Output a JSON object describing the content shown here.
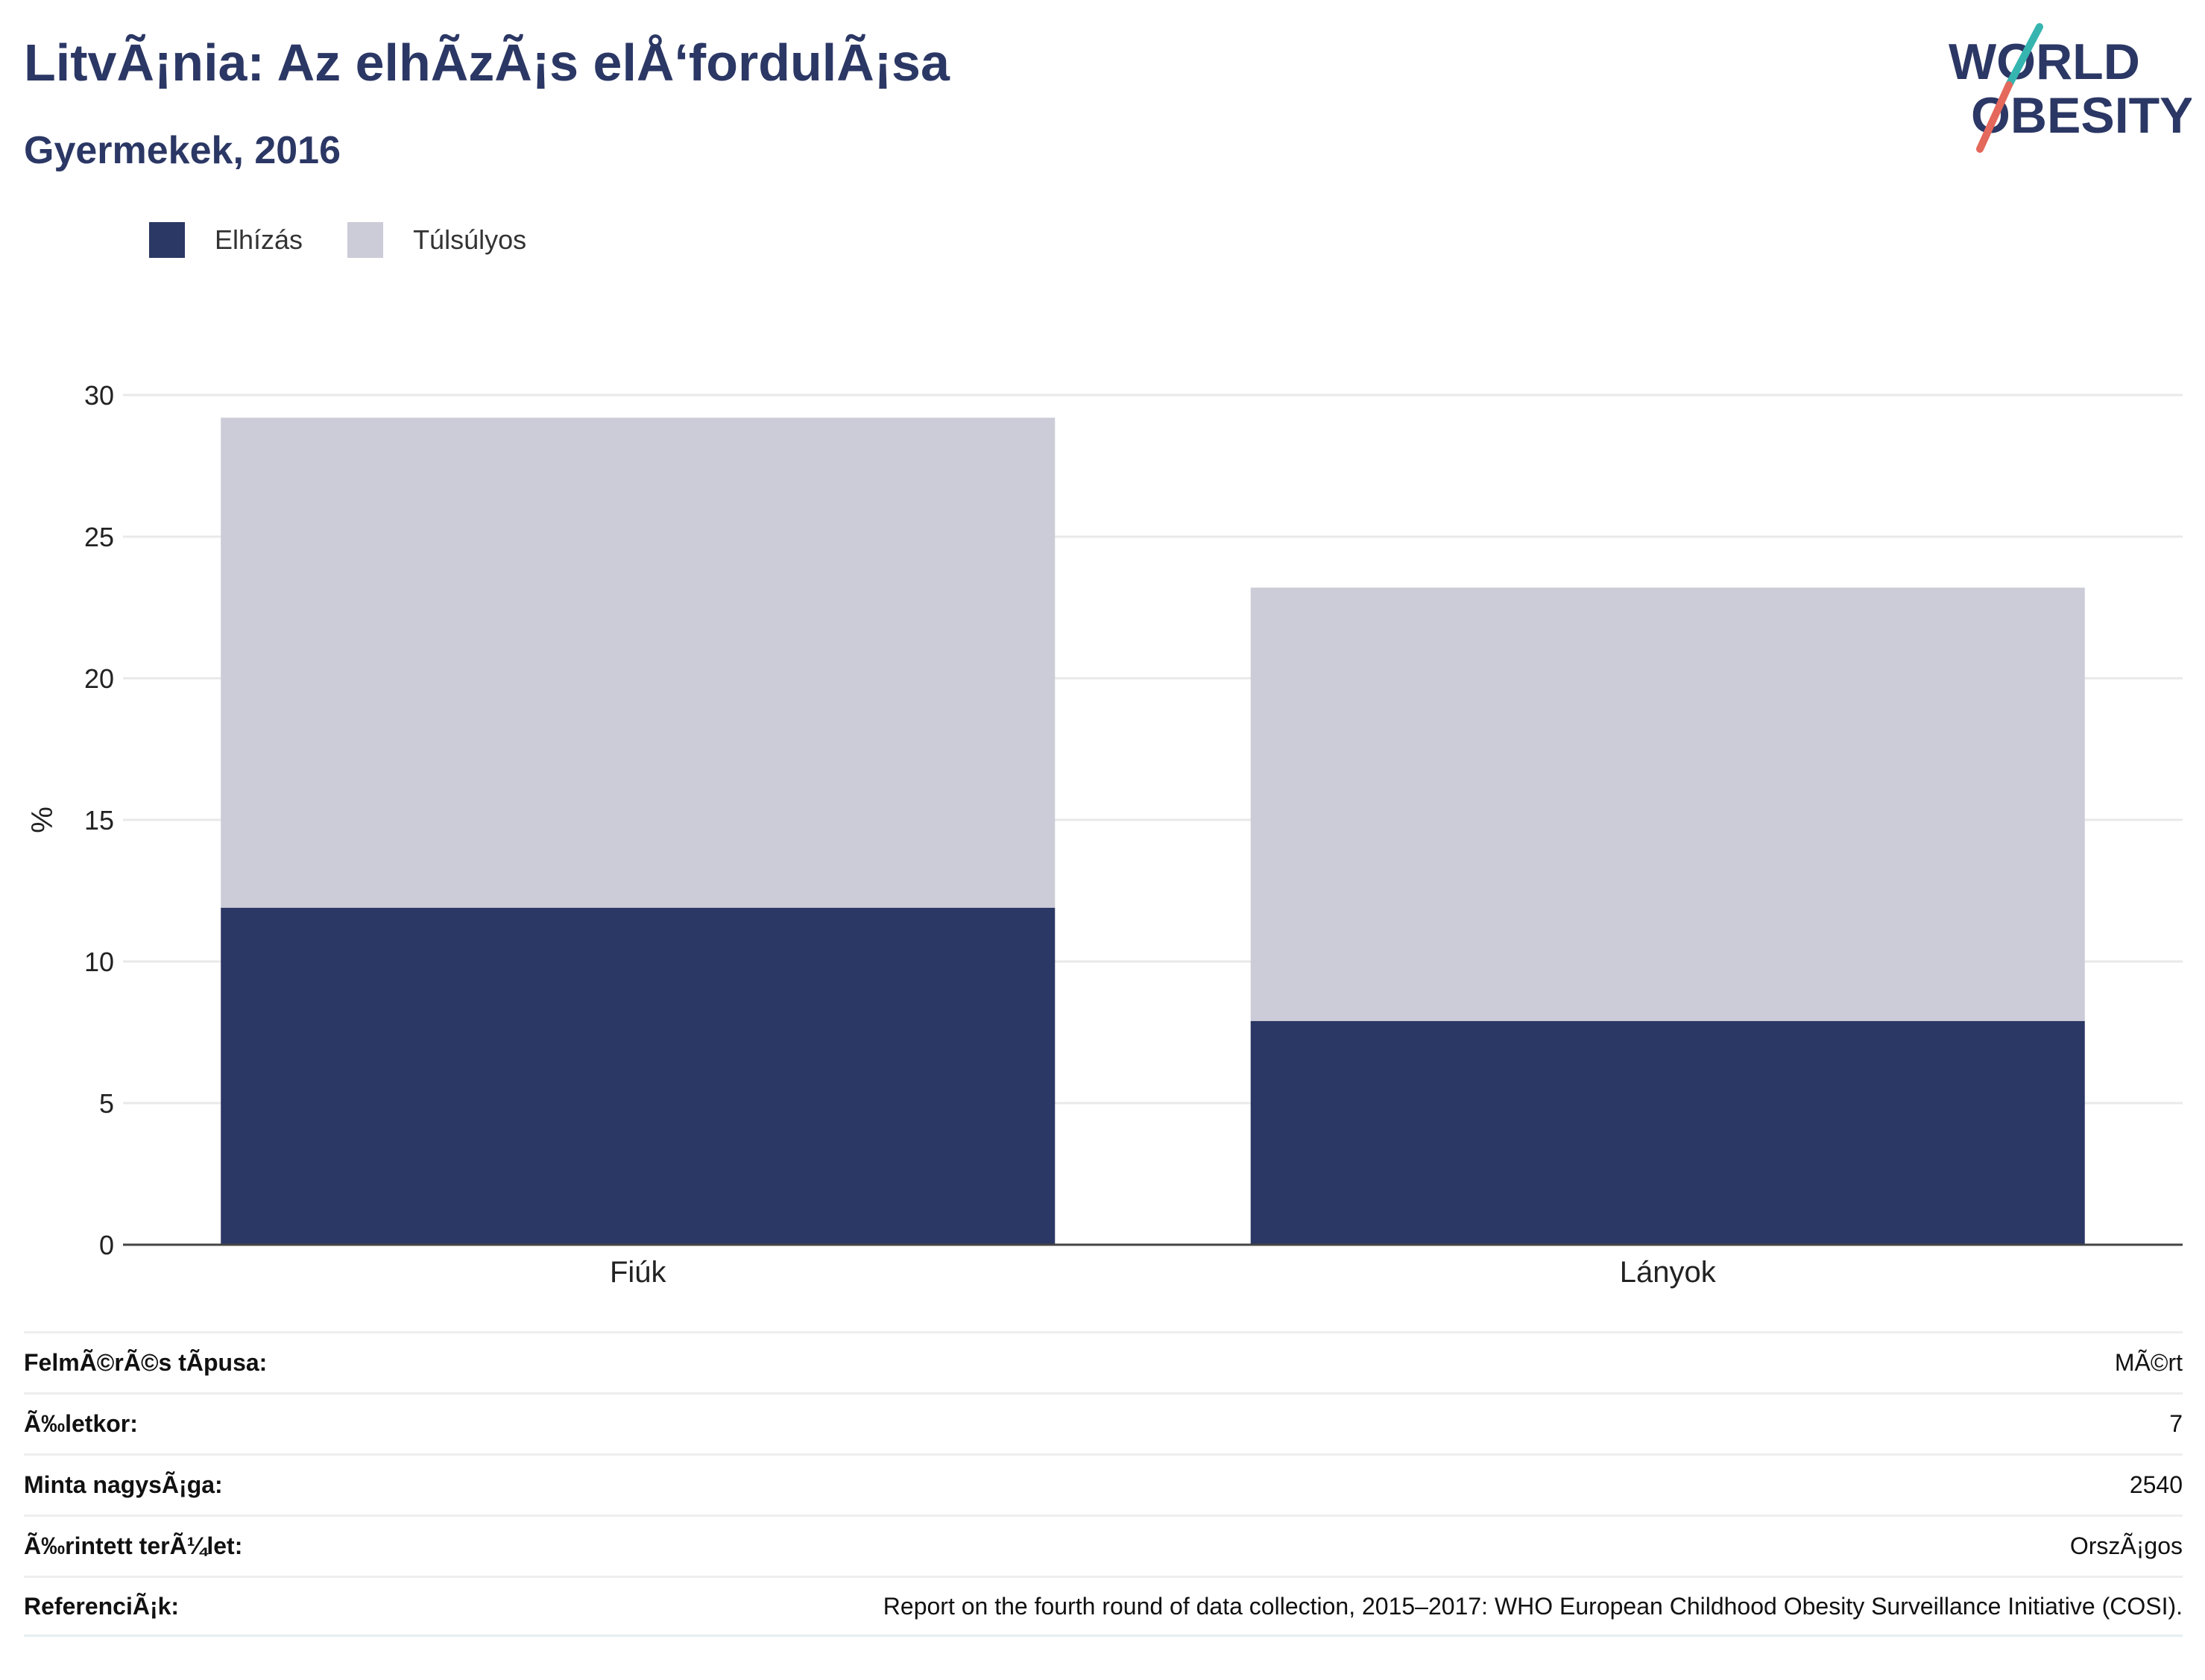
{
  "header": {
    "title": "LitvÃ¡nia: Az elhÃ­zÃ¡s elÅ‘fordulÃ¡sa",
    "subtitle": "Gyermekek, 2016"
  },
  "logo": {
    "line1": "WORLD",
    "line2": "OBESITY"
  },
  "colors": {
    "obesity": "#2b3764",
    "overweight": "#cbccd8",
    "title": "#2b3764",
    "logo_teal": "#36b5b0",
    "logo_coral": "#e4685b"
  },
  "chart_data": {
    "type": "bar",
    "stacked": true,
    "categories": [
      "Fiúk",
      "Lányok"
    ],
    "series": [
      {
        "name": "Elhízás",
        "values": [
          11.9,
          7.9
        ]
      },
      {
        "name": "Túlsúlyos",
        "values": [
          17.3,
          15.3
        ]
      }
    ],
    "ylabel": "%",
    "ylim": [
      0,
      30
    ],
    "yticks": [
      0,
      5,
      10,
      15,
      20,
      25,
      30
    ],
    "grid": true,
    "legend_position": "top-left"
  },
  "info": [
    {
      "label": "FelmÃ©rÃ©s tÃ­pusa:",
      "value": "MÃ©rt"
    },
    {
      "label": "Ã‰letkor:",
      "value": "7"
    },
    {
      "label": "Minta nagysÃ¡ga:",
      "value": "2540"
    },
    {
      "label": "Ã‰rintett terÃ¼let:",
      "value": "OrszÃ¡gos"
    },
    {
      "label": "ReferenciÃ¡k:",
      "value": "Report on the fourth round of data collection, 2015–2017: WHO European Childhood Obesity Surveillance Initiative (COSI)."
    }
  ]
}
